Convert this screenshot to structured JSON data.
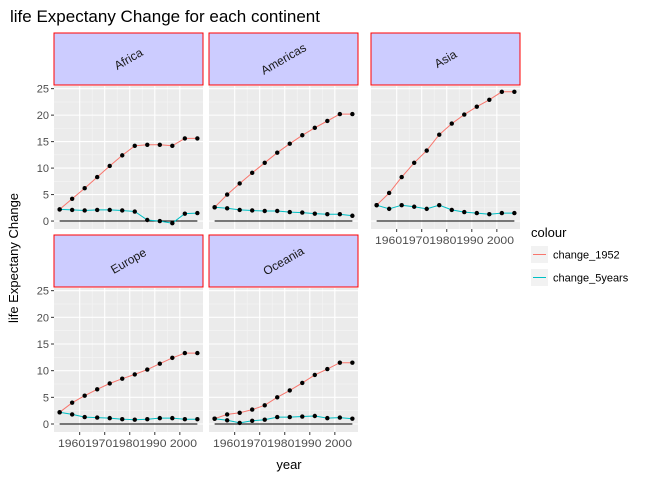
{
  "chart_data": {
    "type": "line",
    "title": "life Expectany Change for each continent",
    "xlabel": "year",
    "ylabel": "life Expectany Change",
    "xlim": [
      1949.75,
      2009.25
    ],
    "ylim": [
      -1.5,
      25.5
    ],
    "x_ticks": [
      1960,
      1970,
      1980,
      1990,
      2000
    ],
    "x_tick_text": "1960197019801990 2000",
    "y_ticks": [
      0,
      5,
      10,
      15,
      20,
      25
    ],
    "grid": true,
    "reference_line": 0,
    "legend": {
      "title": "colour",
      "position": "right",
      "entries": [
        {
          "label": "change_1952",
          "color": "#f8766d"
        },
        {
          "label": "change_5years",
          "color": "#00bfc4"
        }
      ]
    },
    "strip": {
      "fill": "#ccccff",
      "border": "#ff0000"
    },
    "panel_background": "#ebebeb",
    "x": [
      1952,
      1957,
      1962,
      1967,
      1972,
      1977,
      1982,
      1987,
      1992,
      1997,
      2002,
      2007
    ],
    "panels": [
      {
        "name": "Africa",
        "series": [
          {
            "name": "change_1952",
            "values": [
              2.2,
              4.2,
              6.2,
              8.3,
              10.4,
              12.4,
              14.2,
              14.4,
              14.4,
              14.2,
              15.6,
              15.6
            ]
          },
          {
            "name": "change_5years",
            "values": [
              2.2,
              2.1,
              2.0,
              2.1,
              2.1,
              2.0,
              1.8,
              0.2,
              0.0,
              -0.4,
              1.4,
              1.5
            ]
          }
        ]
      },
      {
        "name": "Americas",
        "series": [
          {
            "name": "change_1952",
            "values": [
              2.6,
              5.0,
              7.1,
              9.1,
              11.0,
              12.9,
              14.6,
              16.2,
              17.6,
              18.9,
              20.2,
              20.2
            ]
          },
          {
            "name": "change_5years",
            "values": [
              2.6,
              2.4,
              2.1,
              2.0,
              1.9,
              1.9,
              1.7,
              1.6,
              1.4,
              1.3,
              1.3,
              1.0
            ]
          }
        ]
      },
      {
        "name": "Asia",
        "series": [
          {
            "name": "change_1952",
            "values": [
              3.0,
              5.3,
              8.3,
              11.0,
              13.3,
              16.3,
              18.4,
              20.1,
              21.6,
              22.9,
              24.4,
              24.4
            ]
          },
          {
            "name": "change_5years",
            "values": [
              3.0,
              2.3,
              3.0,
              2.7,
              2.3,
              3.0,
              2.1,
              1.7,
              1.5,
              1.3,
              1.5,
              1.5
            ]
          }
        ]
      },
      {
        "name": "Europe",
        "series": [
          {
            "name": "change_1952",
            "values": [
              2.2,
              4.0,
              5.3,
              6.5,
              7.6,
              8.5,
              9.3,
              10.2,
              11.3,
              12.4,
              13.3,
              13.3
            ]
          },
          {
            "name": "change_5years",
            "values": [
              2.2,
              1.8,
              1.3,
              1.2,
              1.1,
              0.9,
              0.8,
              0.9,
              1.1,
              1.1,
              0.9,
              0.9
            ]
          }
        ]
      },
      {
        "name": "Oceania",
        "series": [
          {
            "name": "change_1952",
            "values": [
              1.0,
              1.8,
              2.1,
              2.7,
              3.5,
              5.0,
              6.3,
              7.7,
              9.2,
              10.3,
              11.5,
              11.5
            ]
          },
          {
            "name": "change_5years",
            "values": [
              1.0,
              0.7,
              0.2,
              0.6,
              0.8,
              1.3,
              1.3,
              1.4,
              1.5,
              1.1,
              1.2,
              1.0
            ]
          }
        ]
      }
    ]
  }
}
